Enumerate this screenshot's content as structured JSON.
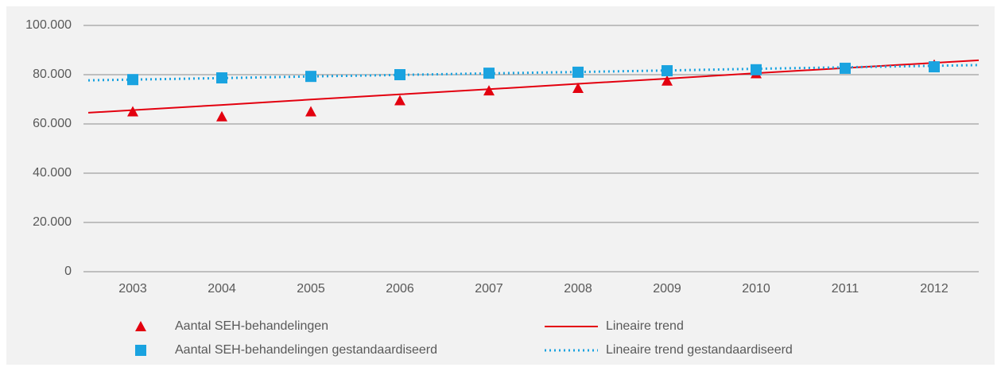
{
  "chart_data": {
    "type": "line",
    "categories": [
      "2003",
      "2004",
      "2005",
      "2006",
      "2007",
      "2008",
      "2009",
      "2010",
      "2011",
      "2012"
    ],
    "series": [
      {
        "name": "Aantal SEH-behandelingen",
        "color": "#e3000f",
        "marker": "triangle",
        "line": false,
        "values": [
          65000,
          63000,
          65000,
          69500,
          73500,
          74500,
          77500,
          80500,
          82500,
          84000
        ]
      },
      {
        "name": "Lineaire trend",
        "color": "#e3000f",
        "marker": "none",
        "line": "solid",
        "values": [
          65600,
          67700,
          69900,
          72000,
          74100,
          76300,
          78400,
          80600,
          82700,
          84800
        ]
      },
      {
        "name": "Aantal SEH-behandelingen gestandaardiseerd",
        "color": "#1aa3e0",
        "marker": "square",
        "line": false,
        "values": [
          78000,
          78700,
          79300,
          80000,
          80600,
          81000,
          81600,
          82000,
          82600,
          83200
        ]
      },
      {
        "name": "Lineaire trend gestandaardiseerd",
        "color": "#1aa3e0",
        "marker": "none",
        "line": "dotted",
        "values": [
          78000,
          78600,
          79300,
          79900,
          80500,
          81100,
          81700,
          82400,
          83000,
          83600
        ]
      }
    ],
    "ylim": [
      0,
      100000
    ],
    "yticks": [
      0,
      {
        "value": 20000,
        "label": "20.000"
      },
      {
        "value": 40000,
        "label": "40.000"
      },
      {
        "value": 60000,
        "label": "60.000"
      },
      {
        "value": 80000,
        "label": "80.000"
      },
      {
        "value": 100000,
        "label": "100.000"
      }
    ],
    "grid": true,
    "legend": "bottom"
  }
}
